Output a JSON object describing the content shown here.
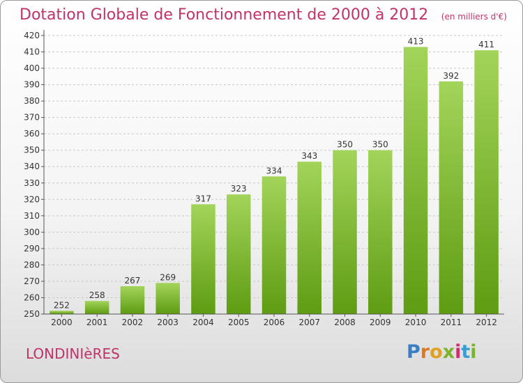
{
  "header": {
    "title": "Dotation Globale de Fonctionnement de 2000 à 2012",
    "subtitle": "(en milliers d'€)"
  },
  "footer": {
    "commune": "LONDINIèRES",
    "logo": [
      "P",
      "r",
      "o",
      "x",
      "i",
      "t",
      "i"
    ],
    "logo_colors": [
      "#3a7fc4",
      "#e07820",
      "#e0a020",
      "#7ab32e",
      "#d02c6e",
      "#3a9fd0",
      "#7ab32e"
    ]
  },
  "colors": {
    "bar_light": "#a3d45a",
    "bar_dark": "#5e9c12",
    "grid": "#c8c8c8",
    "axis": "#555555",
    "text": "#333333"
  },
  "chart_data": {
    "type": "bar",
    "categories": [
      "2000",
      "2001",
      "2002",
      "2003",
      "2004",
      "2005",
      "2006",
      "2007",
      "2008",
      "2009",
      "2010",
      "2011",
      "2012"
    ],
    "values": [
      252,
      258,
      267,
      269,
      317,
      323,
      334,
      343,
      350,
      350,
      413,
      392,
      411
    ],
    "data_labels": [
      "252",
      "258",
      "267",
      "269",
      "317",
      "323",
      "334",
      "343",
      "350",
      "350",
      "413",
      "392",
      "411"
    ],
    "y_ticks": [
      250,
      260,
      270,
      280,
      290,
      300,
      310,
      320,
      330,
      340,
      350,
      360,
      370,
      380,
      390,
      400,
      410,
      420
    ],
    "ylim": [
      250,
      420
    ],
    "grid": true,
    "title": "Dotation Globale de Fonctionnement de 2000 à 2012",
    "xlabel": "",
    "ylabel": ""
  }
}
